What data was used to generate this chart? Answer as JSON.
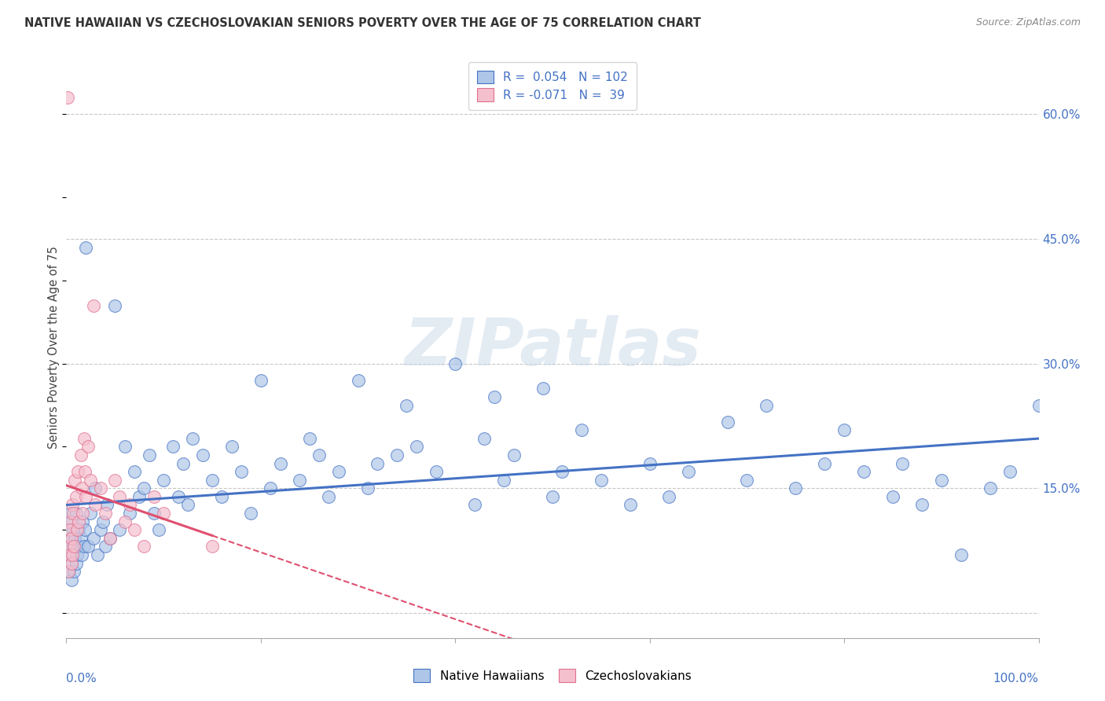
{
  "title": "NATIVE HAWAIIAN VS CZECHOSLOVAKIAN SENIORS POVERTY OVER THE AGE OF 75 CORRELATION CHART",
  "source": "Source: ZipAtlas.com",
  "ylabel": "Seniors Poverty Over the Age of 75",
  "xlim": [
    0.0,
    1.0
  ],
  "ylim": [
    -0.03,
    0.67
  ],
  "yticks": [
    0.0,
    0.15,
    0.3,
    0.45,
    0.6
  ],
  "yticklabels": [
    "",
    "15.0%",
    "30.0%",
    "45.0%",
    "60.0%"
  ],
  "xticks": [
    0.0,
    0.2,
    0.4,
    0.6,
    0.8,
    1.0
  ],
  "xticklabels_left": "0.0%",
  "xticklabels_right": "100.0%",
  "r_hawaiian": 0.054,
  "n_hawaiian": 102,
  "r_czech": -0.071,
  "n_czech": 39,
  "color_hawaiian_face": "#aec6e8",
  "color_hawaiian_edge": "#4472c4",
  "color_czech_face": "#f5c0ce",
  "color_czech_edge": "#e07090",
  "line_color_hawaiian": "#4472c4",
  "line_color_czech": "#e05070",
  "watermark": "ZIPatlas",
  "hawaiian_x": [
    0.002,
    0.003,
    0.003,
    0.004,
    0.004,
    0.005,
    0.005,
    0.005,
    0.006,
    0.006,
    0.007,
    0.007,
    0.008,
    0.009,
    0.01,
    0.01,
    0.011,
    0.012,
    0.013,
    0.015,
    0.016,
    0.017,
    0.018,
    0.019,
    0.02,
    0.022,
    0.025,
    0.028,
    0.03,
    0.032,
    0.035,
    0.038,
    0.04,
    0.042,
    0.045,
    0.05,
    0.055,
    0.06,
    0.065,
    0.07,
    0.075,
    0.08,
    0.085,
    0.09,
    0.095,
    0.1,
    0.11,
    0.115,
    0.12,
    0.125,
    0.13,
    0.14,
    0.15,
    0.16,
    0.17,
    0.18,
    0.19,
    0.2,
    0.21,
    0.22,
    0.24,
    0.25,
    0.26,
    0.27,
    0.28,
    0.3,
    0.31,
    0.32,
    0.34,
    0.35,
    0.36,
    0.38,
    0.4,
    0.42,
    0.43,
    0.44,
    0.45,
    0.46,
    0.49,
    0.5,
    0.51,
    0.53,
    0.55,
    0.58,
    0.6,
    0.62,
    0.64,
    0.68,
    0.7,
    0.72,
    0.75,
    0.78,
    0.8,
    0.82,
    0.85,
    0.86,
    0.88,
    0.9,
    0.92,
    0.95,
    0.97,
    1.0
  ],
  "hawaiian_y": [
    0.1,
    0.08,
    0.05,
    0.07,
    0.12,
    0.06,
    0.09,
    0.04,
    0.11,
    0.07,
    0.08,
    0.1,
    0.05,
    0.09,
    0.06,
    0.12,
    0.07,
    0.08,
    0.1,
    0.09,
    0.07,
    0.11,
    0.08,
    0.1,
    0.44,
    0.08,
    0.12,
    0.09,
    0.15,
    0.07,
    0.1,
    0.11,
    0.08,
    0.13,
    0.09,
    0.37,
    0.1,
    0.2,
    0.12,
    0.17,
    0.14,
    0.15,
    0.19,
    0.12,
    0.1,
    0.16,
    0.2,
    0.14,
    0.18,
    0.13,
    0.21,
    0.19,
    0.16,
    0.14,
    0.2,
    0.17,
    0.12,
    0.28,
    0.15,
    0.18,
    0.16,
    0.21,
    0.19,
    0.14,
    0.17,
    0.28,
    0.15,
    0.18,
    0.19,
    0.25,
    0.2,
    0.17,
    0.3,
    0.13,
    0.21,
    0.26,
    0.16,
    0.19,
    0.27,
    0.14,
    0.17,
    0.22,
    0.16,
    0.13,
    0.18,
    0.14,
    0.17,
    0.23,
    0.16,
    0.25,
    0.15,
    0.18,
    0.22,
    0.17,
    0.14,
    0.18,
    0.13,
    0.16,
    0.07,
    0.15,
    0.17,
    0.25
  ],
  "czech_x": [
    0.001,
    0.002,
    0.003,
    0.003,
    0.004,
    0.004,
    0.005,
    0.005,
    0.006,
    0.006,
    0.007,
    0.008,
    0.009,
    0.01,
    0.011,
    0.012,
    0.013,
    0.015,
    0.016,
    0.017,
    0.018,
    0.019,
    0.02,
    0.022,
    0.025,
    0.028,
    0.03,
    0.035,
    0.04,
    0.045,
    0.05,
    0.055,
    0.06,
    0.065,
    0.07,
    0.08,
    0.09,
    0.1,
    0.15
  ],
  "czech_y": [
    0.62,
    0.05,
    0.08,
    0.07,
    0.11,
    0.1,
    0.09,
    0.06,
    0.13,
    0.07,
    0.12,
    0.08,
    0.16,
    0.14,
    0.1,
    0.17,
    0.11,
    0.19,
    0.15,
    0.12,
    0.21,
    0.17,
    0.14,
    0.2,
    0.16,
    0.37,
    0.13,
    0.15,
    0.12,
    0.09,
    0.16,
    0.14,
    0.11,
    0.13,
    0.1,
    0.08,
    0.14,
    0.12,
    0.08
  ]
}
